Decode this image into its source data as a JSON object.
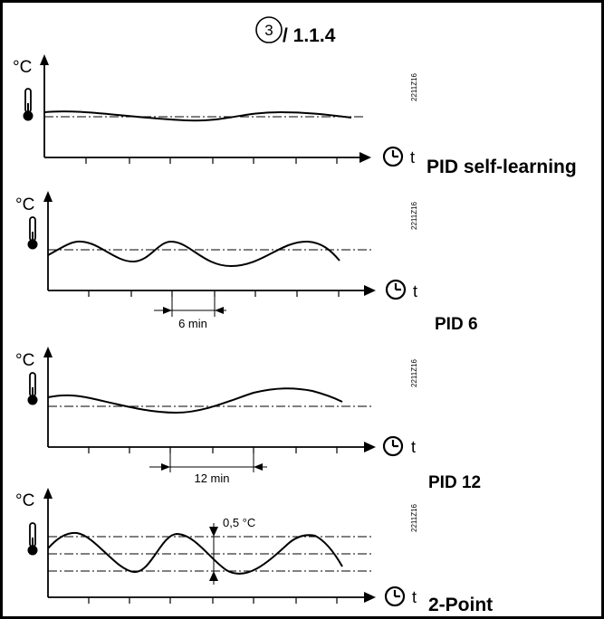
{
  "header": {
    "circle_number": "3",
    "reference": "/ 1.1.4"
  },
  "panels": [
    {
      "unit": "°C",
      "time_symbol": "t",
      "drawing_code": "2211Z16",
      "label": "PID self-learning",
      "interval_label": ""
    },
    {
      "unit": "°C",
      "time_symbol": "t",
      "drawing_code": "2211Z16",
      "label": "PID 6",
      "interval_label": "6 min"
    },
    {
      "unit": "°C",
      "time_symbol": "t",
      "drawing_code": "2211Z16",
      "label": "PID 12",
      "interval_label": "12 min"
    },
    {
      "unit": "°C",
      "time_symbol": "t",
      "drawing_code": "2211Z16",
      "label": "2-Point",
      "interval_label": "",
      "band_label": "0,5 °C"
    }
  ],
  "icons": {
    "thermometer": "thermometer-icon",
    "clock": "clock-icon",
    "arrow": "arrow-head-icon"
  }
}
